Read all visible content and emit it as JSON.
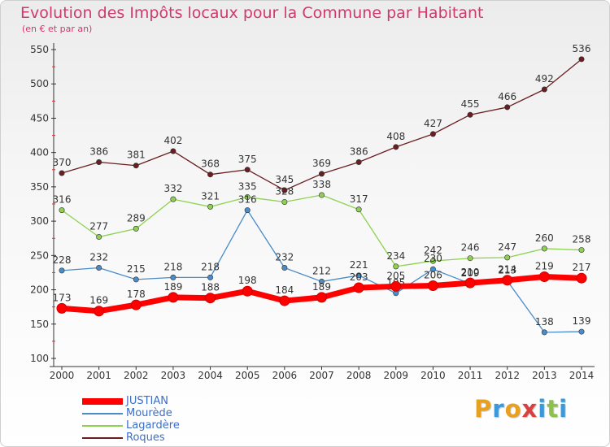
{
  "header": {
    "title": "Evolution des Impôts locaux pour la Commune par Habitant",
    "subtitle": "(en € et par an)"
  },
  "logo": {
    "text": "Proxiti",
    "colors": [
      "#e8a020",
      "#3a9ad9",
      "#e8a020",
      "#d94040",
      "#3a9ad9",
      "#8bc34a",
      "#3a9ad9"
    ]
  },
  "chart_data": {
    "type": "line",
    "title": "Evolution des Impôts locaux pour la Commune par Habitant",
    "subtitle": "(en € et par an)",
    "xlabel": "",
    "ylabel": "",
    "x": [
      "2000",
      "2001",
      "2002",
      "2003",
      "2004",
      "2005",
      "2006",
      "2007",
      "2008",
      "2009",
      "2010",
      "2011",
      "2012",
      "2013",
      "2014"
    ],
    "ylim": [
      100,
      550
    ],
    "yticks": [
      100,
      150,
      200,
      250,
      300,
      350,
      400,
      450,
      500,
      550
    ],
    "grid": false,
    "legend_position": "bottom-left",
    "series": [
      {
        "name": "Roques",
        "color": "#6b1e22",
        "values": [
          370,
          386,
          381,
          402,
          368,
          375,
          345,
          369,
          386,
          408,
          427,
          455,
          466,
          492,
          536
        ]
      },
      {
        "name": "Lagardère",
        "color": "#8ed14f",
        "values": [
          316,
          277,
          289,
          332,
          321,
          335,
          328,
          338,
          317,
          234,
          242,
          246,
          247,
          260,
          258
        ]
      },
      {
        "name": "Mourède",
        "color": "#4a8cc8",
        "values": [
          228,
          232,
          215,
          218,
          218,
          316,
          232,
          212,
          221,
          195,
          230,
          209,
          213,
          138,
          139
        ]
      },
      {
        "name": "JUSTIAN",
        "color": "#ff0000",
        "values": [
          173,
          169,
          178,
          189,
          188,
          198,
          184,
          189,
          203,
          205,
          206,
          210,
          214,
          219,
          217
        ]
      }
    ],
    "legend_order": [
      "JUSTIAN",
      "Mourède",
      "Lagardère",
      "Roques"
    ]
  }
}
